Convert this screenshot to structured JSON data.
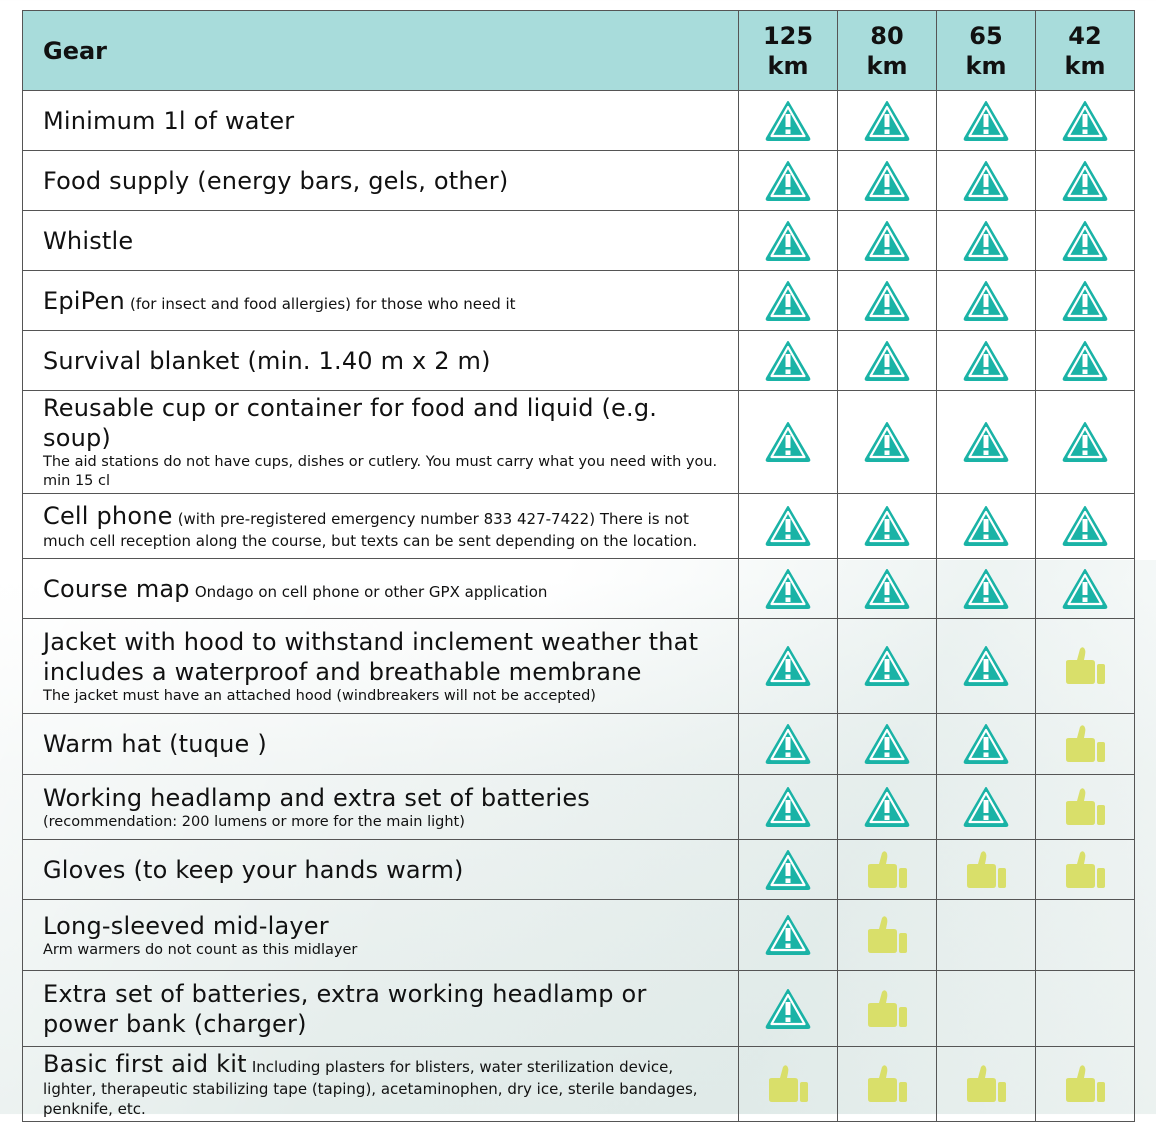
{
  "header": {
    "gear": "Gear",
    "distances": [
      {
        "num": "125",
        "unit": "km"
      },
      {
        "num": "80",
        "unit": "km"
      },
      {
        "num": "65",
        "unit": "km"
      },
      {
        "num": "42",
        "unit": "km"
      }
    ]
  },
  "colors": {
    "header_bg": "#a8dcdb",
    "warning": "#1ab3a6",
    "thumb": "#d9df6a"
  },
  "legend_icons": {
    "warning": "warning-triangle-icon (mandatory)",
    "thumb": "thumbs-up-icon (recommended)"
  },
  "rows": [
    {
      "title": "Minimum 1l of water",
      "note": "",
      "inline": false,
      "h": 60,
      "cells": [
        "warning",
        "warning",
        "warning",
        "warning"
      ]
    },
    {
      "title": "Food supply (energy bars, gels, other)",
      "note": "",
      "inline": false,
      "h": 60,
      "cells": [
        "warning",
        "warning",
        "warning",
        "warning"
      ]
    },
    {
      "title": "Whistle",
      "note": "",
      "inline": false,
      "h": 60,
      "cells": [
        "warning",
        "warning",
        "warning",
        "warning"
      ]
    },
    {
      "title": "EpiPen",
      "note": "(for insect and food allergies) for those who need it",
      "inline": true,
      "h": 60,
      "cells": [
        "warning",
        "warning",
        "warning",
        "warning"
      ]
    },
    {
      "title": "Survival blanket (min. 1.40 m x 2 m)",
      "note": "",
      "inline": false,
      "h": 60,
      "cells": [
        "warning",
        "warning",
        "warning",
        "warning"
      ]
    },
    {
      "title": "Reusable cup or container for food and liquid (e.g. soup)",
      "note": "The aid stations do not have cups, dishes or cutlery. You must carry what you need with you. min 15 cl",
      "inline": false,
      "h": 84,
      "cells": [
        "warning",
        "warning",
        "warning",
        "warning"
      ]
    },
    {
      "title": "Cell phone",
      "note": "(with pre-registered emergency number 833 427-7422) There is not much cell reception along the course, but texts can be sent depending on the location.",
      "inline": true,
      "h": 65,
      "cells": [
        "warning",
        "warning",
        "warning",
        "warning"
      ]
    },
    {
      "title": "Course map",
      "note": "Ondago on cell phone or other GPX application",
      "inline": true,
      "h": 60,
      "cells": [
        "warning",
        "warning",
        "warning",
        "warning"
      ]
    },
    {
      "title": "Jacket with hood to withstand inclement weather that includes a waterproof and breathable membrane",
      "note": "The jacket must have an attached hood (windbreakers will not be accepted)",
      "inline": false,
      "h": 95,
      "cells": [
        "warning",
        "warning",
        "warning",
        "thumb"
      ]
    },
    {
      "title": "Warm hat (tuque )",
      "note": "",
      "inline": false,
      "h": 61,
      "cells": [
        "warning",
        "warning",
        "warning",
        "thumb"
      ]
    },
    {
      "title": "Working headlamp and extra set of batteries",
      "note": "(recommendation: 200 lumens or more for the main light)",
      "inline": false,
      "h": 65,
      "cells": [
        "warning",
        "warning",
        "warning",
        "thumb"
      ]
    },
    {
      "title": "Gloves (to keep your hands warm)",
      "note": "",
      "inline": false,
      "h": 60,
      "cells": [
        "warning",
        "thumb",
        "thumb",
        "thumb"
      ]
    },
    {
      "title": "Long-sleeved mid-layer",
      "note": "Arm warmers do not count as this midlayer",
      "inline": false,
      "h": 71,
      "cells": [
        "warning",
        "thumb",
        "",
        ""
      ]
    },
    {
      "title": "Extra set of batteries, extra working headlamp or power bank (charger)",
      "note": "",
      "inline": false,
      "h": 76,
      "cells": [
        "warning",
        "thumb",
        "",
        ""
      ]
    },
    {
      "title": "Basic first aid kit",
      "note": "Including plasters for blisters, water sterilization device, lighter, therapeutic stabilizing tape (taping), acetaminophen, dry ice, sterile bandages, penknife, etc.",
      "inline": true,
      "h": 65,
      "cells": [
        "thumb",
        "thumb",
        "thumb",
        "thumb"
      ]
    }
  ]
}
